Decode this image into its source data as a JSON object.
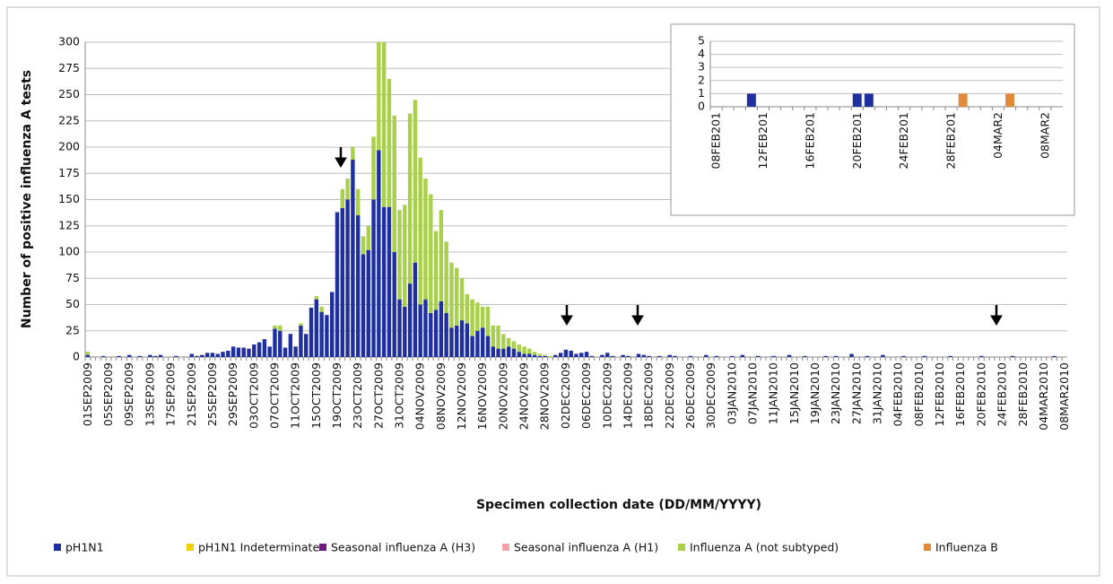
{
  "chart_data": [
    {
      "type": "bar",
      "stacked": true,
      "x_label": "Specimen collection date (DD/MM/YYYY)",
      "y_label": "Number of positive influenza A tests",
      "categories": [
        "01SEP2009",
        null,
        null,
        null,
        "05SEP2009",
        null,
        null,
        null,
        "09SEP2009",
        null,
        null,
        null,
        "13SEP2009",
        null,
        null,
        null,
        "17SEP2009",
        null,
        null,
        null,
        "21SEP2009",
        null,
        null,
        null,
        "25SEP2009",
        null,
        null,
        null,
        "29SEP2009",
        null,
        null,
        null,
        "03OCT2009",
        null,
        null,
        null,
        "07OCT2009",
        null,
        null,
        null,
        "11OCT2009",
        null,
        null,
        null,
        "15OCT2009",
        null,
        null,
        null,
        "19OCT2009",
        null,
        null,
        null,
        "23OCT2009",
        null,
        null,
        null,
        "27OCT2009",
        null,
        null,
        null,
        "31OCT2009",
        null,
        null,
        null,
        "04NOV2009",
        null,
        null,
        null,
        "08NOV2009",
        null,
        null,
        null,
        "12NOV2009",
        null,
        null,
        null,
        "16NOV2009",
        null,
        null,
        null,
        "20NOV2009",
        null,
        null,
        null,
        "24NOV2009",
        null,
        null,
        null,
        "28NOV2009",
        null,
        null,
        null,
        "02DEC2009",
        null,
        null,
        null,
        "06DEC2009",
        null,
        null,
        null,
        "10DEC2009",
        null,
        null,
        null,
        "14DEC2009",
        null,
        null,
        null,
        "18DEC2009",
        null,
        null,
        null,
        "22DEC2009",
        null,
        null,
        null,
        "26DEC2009",
        null,
        null,
        null,
        "30DEC2009",
        null,
        null,
        null,
        "03JAN2010",
        null,
        null,
        null,
        "07JAN2010",
        null,
        null,
        null,
        "11JAN2010",
        null,
        null,
        null,
        "15JAN2010",
        null,
        null,
        null,
        "19JAN2010",
        null,
        null,
        null,
        "23JAN2010",
        null,
        null,
        null,
        "27JAN2010",
        null,
        null,
        null,
        "31JAN2010",
        null,
        null,
        null,
        "04FEB2010",
        null,
        null,
        null,
        "08FEB2010",
        null,
        null,
        null,
        "12FEB2010",
        null,
        null,
        null,
        "16FEB2010",
        null,
        null,
        null,
        "20FEB2010",
        null,
        null,
        null,
        "24FEB2010",
        null,
        null,
        null,
        "28FEB2010",
        null,
        null,
        null,
        "04MAR2010",
        null,
        null,
        null,
        "08MAR2010"
      ],
      "series": [
        {
          "name": "pH1N1",
          "color": "#1f2fa0",
          "values": [
            2,
            0,
            0,
            1,
            0,
            0,
            1,
            0,
            2,
            0,
            1,
            0,
            2,
            1,
            2,
            0,
            0,
            1,
            0,
            0,
            3,
            1,
            2,
            4,
            4,
            3,
            5,
            6,
            10,
            9,
            9,
            8,
            12,
            14,
            17,
            10,
            27,
            25,
            9,
            22,
            10,
            30,
            22,
            47,
            55,
            43,
            40,
            62,
            138,
            142,
            150,
            188,
            135,
            98,
            102,
            150,
            197,
            143,
            143,
            100,
            55,
            48,
            70,
            90,
            50,
            55,
            42,
            45,
            53,
            42,
            28,
            30,
            35,
            32,
            20,
            25,
            28,
            20,
            10,
            8,
            8,
            10,
            8,
            5,
            3,
            3,
            2,
            1,
            1,
            0,
            2,
            4,
            7,
            6,
            3,
            4,
            5,
            1,
            0,
            2,
            4,
            1,
            0,
            2,
            1,
            0,
            3,
            2,
            1,
            0,
            1,
            0,
            2,
            1,
            0,
            0,
            1,
            0,
            0,
            2,
            0,
            1,
            0,
            0,
            1,
            0,
            2,
            0,
            0,
            1,
            0,
            0,
            1,
            0,
            0,
            2,
            0,
            0,
            1,
            0,
            0,
            0,
            1,
            0,
            1,
            0,
            0,
            3,
            0,
            0,
            1,
            0,
            0,
            2,
            0,
            0,
            0,
            1,
            0,
            0,
            0,
            1,
            0,
            0,
            0,
            0,
            1,
            0,
            0,
            0,
            0,
            0,
            1,
            0,
            0,
            0,
            0,
            0,
            1,
            0,
            0,
            0,
            0,
            0,
            0,
            0,
            1,
            0,
            0
          ]
        },
        {
          "name": "Influenza A (not subtyped)",
          "color": "#a8d04a",
          "values": [
            3,
            0,
            0,
            0,
            0,
            0,
            0,
            0,
            0,
            0,
            0,
            0,
            0,
            0,
            0,
            0,
            0,
            0,
            0,
            0,
            0,
            0,
            0,
            0,
            0,
            0,
            0,
            0,
            0,
            0,
            0,
            0,
            0,
            0,
            0,
            0,
            3,
            5,
            0,
            0,
            0,
            2,
            0,
            0,
            3,
            5,
            0,
            0,
            0,
            18,
            20,
            12,
            25,
            17,
            23,
            60,
            103,
            157,
            122,
            130,
            85,
            97,
            162,
            155,
            140,
            115,
            113,
            75,
            87,
            68,
            62,
            55,
            40,
            28,
            35,
            27,
            20,
            28,
            20,
            22,
            14,
            8,
            7,
            7,
            7,
            5,
            3,
            2,
            1,
            1,
            0,
            0,
            0,
            0,
            0,
            0,
            0,
            0,
            0,
            0,
            0,
            0,
            0,
            0,
            0,
            0,
            0,
            0,
            0,
            0,
            0,
            0,
            0,
            0,
            0,
            0,
            0,
            0,
            0,
            0,
            0,
            0,
            0,
            0,
            0,
            0,
            0,
            0,
            0,
            0,
            0,
            0,
            0,
            0,
            0,
            0,
            0,
            0,
            0,
            0,
            0,
            0,
            0,
            0,
            0,
            0,
            0,
            0,
            0,
            0,
            0,
            0,
            0,
            0,
            0,
            0,
            0,
            0,
            0,
            0,
            0,
            0,
            0,
            0,
            0,
            0,
            0,
            0,
            0,
            0,
            0,
            0,
            0,
            0,
            0,
            0,
            0,
            0,
            0,
            0,
            0,
            0,
            0,
            0,
            0,
            0,
            0,
            0,
            0
          ]
        }
      ],
      "legend": [
        {
          "name": "pH1N1",
          "color": "#1f2fa0"
        },
        {
          "name": "pH1N1 Indeterminate",
          "color": "#f5d000"
        },
        {
          "name": "Seasonal influenza A (H3)",
          "color": "#6a1a7a"
        },
        {
          "name": "Seasonal influenza A (H1)",
          "color": "#f4a3a8"
        },
        {
          "name": "Influenza A (not subtyped)",
          "color": "#a8d04a"
        },
        {
          "name": "Influenza B",
          "color": "#e08a3a"
        }
      ],
      "ylim": [
        0,
        300
      ],
      "yticks": [
        0,
        25,
        50,
        75,
        100,
        125,
        150,
        175,
        200,
        225,
        250,
        275,
        300
      ],
      "grid": true
    },
    {
      "type": "bar",
      "stacked": true,
      "categories": [
        "08FEB201",
        null,
        null,
        null,
        "12FEB201",
        null,
        null,
        null,
        "16FEB201",
        null,
        null,
        null,
        "20FEB201",
        null,
        null,
        null,
        "24FEB201",
        null,
        null,
        null,
        "28FEB201",
        null,
        null,
        null,
        "04MAR2",
        null,
        null,
        null,
        "08MAR2",
        null
      ],
      "series": [
        {
          "color": "#1f2fa0",
          "values": [
            0,
            0,
            0,
            1,
            0,
            0,
            0,
            0,
            0,
            0,
            0,
            0,
            1,
            1,
            0,
            0,
            0,
            0,
            0,
            0,
            0,
            0,
            0,
            0,
            0,
            0,
            0,
            0,
            0,
            0
          ]
        },
        {
          "color": "#e08a3a",
          "values": [
            0,
            0,
            0,
            0,
            0,
            0,
            0,
            0,
            0,
            0,
            0,
            0,
            0,
            0,
            0,
            0,
            0,
            0,
            0,
            0,
            0,
            1,
            0,
            0,
            0,
            1,
            0,
            0,
            0,
            0
          ]
        }
      ],
      "ylim": [
        0,
        5
      ],
      "yticks": [
        0,
        1,
        2,
        3,
        4,
        5
      ],
      "grid": true
    }
  ]
}
